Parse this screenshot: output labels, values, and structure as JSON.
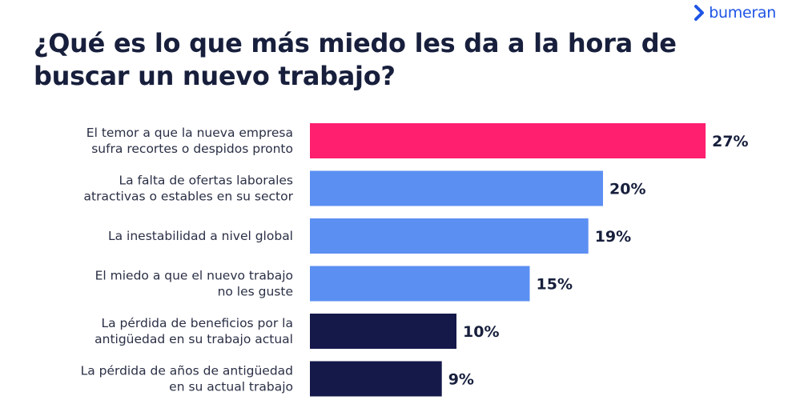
{
  "brand": {
    "name": "bumeran",
    "color": "#1f55e6"
  },
  "chart_data": {
    "type": "bar",
    "orientation": "horizontal",
    "title": "¿Qué es lo que más miedo les da a la hora de buscar un nuevo trabajo?",
    "categories": [
      [
        "El temor a que la nueva empresa",
        "sufra recortes o despidos pronto"
      ],
      [
        "La falta de ofertas laborales",
        "atractivas o estables en su sector"
      ],
      [
        "La inestabilidad a nivel global"
      ],
      [
        "El miedo a que el nuevo trabajo",
        "no les guste"
      ],
      [
        "La pérdida de beneficios por la",
        "antigüedad en su trabajo actual"
      ],
      [
        "La pérdida de años de antigüedad",
        "en su actual trabajo"
      ]
    ],
    "values": [
      27,
      20,
      19,
      15,
      10,
      9
    ],
    "value_labels": [
      "27%",
      "20%",
      "19%",
      "15%",
      "10%",
      "9%"
    ],
    "unit": "%",
    "colors": [
      "#ff1f6e",
      "#5b8ff2",
      "#5b8ff2",
      "#5b8ff2",
      "#15194a",
      "#15194a"
    ],
    "grid": false,
    "legend": "none"
  }
}
